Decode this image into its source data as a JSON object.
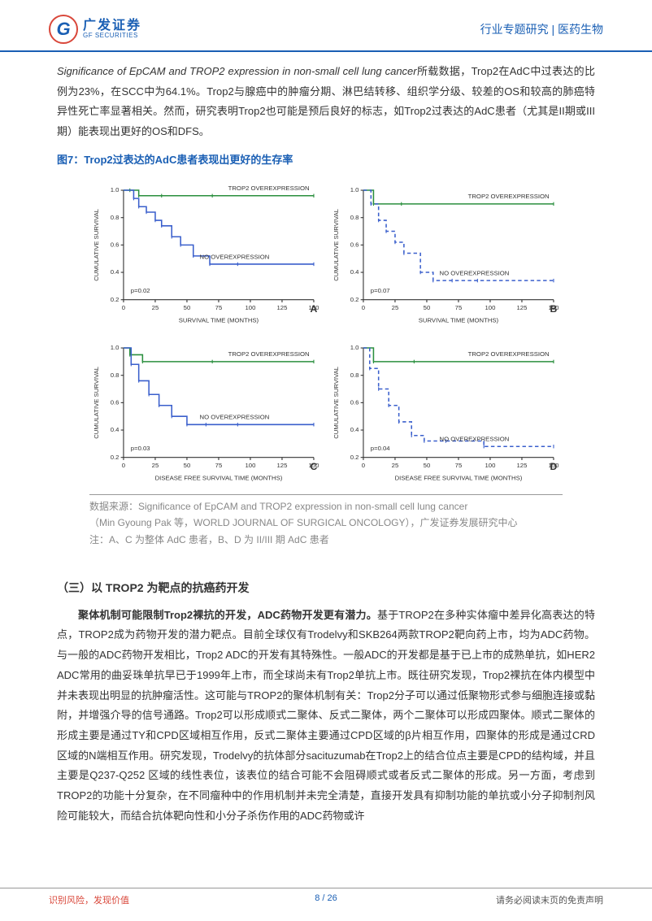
{
  "header": {
    "logo_cn": "广发证券",
    "logo_en": "GF SECURITIES",
    "breadcrumb": "行业专题研究 | 医药生物"
  },
  "para1": {
    "italic_part": "Significance of EpCAM and TROP2 expression in non-small cell lung cancer",
    "rest": "所载数据，Trop2在AdC中过表达的比例为23%，在SCC中为64.1%。Trop2与腺癌中的肿瘤分期、淋巴结转移、组织学分级、较差的OS和较高的肺癌特异性死亡率显著相关。然而，研究表明Trop2也可能是预后良好的标志，如Trop2过表达的AdC患者（尤其是II期或III期）能表现出更好的OS和DFS。"
  },
  "figure7": {
    "title": "图7：Trop2过表达的AdC患者表现出更好的生存率",
    "charts": {
      "type": "survival_curve",
      "line_color_over": "#2a8f3e",
      "line_color_no": "#3a5fcc",
      "axis_color": "#333333",
      "grid_color": "#cccccc",
      "label_fontsize": 7,
      "panel_label_fontsize": 11,
      "xlim": [
        0,
        150
      ],
      "ylim": [
        0.2,
        1.0
      ],
      "panels": [
        {
          "id": "A",
          "xlabel": "SURVIVAL TIME (MONTHS)",
          "ylabel": "CUMULATIVE SURVIVAL",
          "p_text": "p=0.02",
          "label_over": "TROP2 OVEREXPRESSION",
          "label_no": "NO OVEREXPRESSION",
          "xticks": [
            0,
            25,
            50,
            75,
            100,
            125,
            150
          ],
          "yticks": [
            0.2,
            0.4,
            0.6,
            0.8,
            1.0
          ],
          "over_points": [
            [
              0,
              1.0
            ],
            [
              5,
              1.0
            ],
            [
              12,
              0.96
            ],
            [
              30,
              0.96
            ],
            [
              70,
              0.96
            ],
            [
              150,
              0.96
            ]
          ],
          "no_points": [
            [
              0,
              1.0
            ],
            [
              8,
              0.94
            ],
            [
              12,
              0.88
            ],
            [
              18,
              0.84
            ],
            [
              25,
              0.78
            ],
            [
              30,
              0.74
            ],
            [
              38,
              0.66
            ],
            [
              45,
              0.6
            ],
            [
              55,
              0.52
            ],
            [
              68,
              0.46
            ],
            [
              90,
              0.46
            ],
            [
              150,
              0.46
            ]
          ]
        },
        {
          "id": "B",
          "xlabel": "SURVIVAL TIME (MONTHS)",
          "ylabel": "CUMULATIVE SURVIVAL",
          "p_text": "p=0.07",
          "label_over": "TROP2 OVEREXPRESSION",
          "label_no": "NO OVEREXPRESSION",
          "xticks": [
            0,
            25,
            50,
            75,
            100,
            125,
            150
          ],
          "yticks": [
            0.2,
            0.4,
            0.6,
            0.8,
            1.0
          ],
          "over_points": [
            [
              0,
              1.0
            ],
            [
              8,
              0.9
            ],
            [
              30,
              0.9
            ],
            [
              150,
              0.9
            ]
          ],
          "no_points": [
            [
              0,
              1.0
            ],
            [
              6,
              0.9
            ],
            [
              12,
              0.78
            ],
            [
              18,
              0.7
            ],
            [
              25,
              0.62
            ],
            [
              32,
              0.54
            ],
            [
              45,
              0.4
            ],
            [
              55,
              0.34
            ],
            [
              70,
              0.34
            ],
            [
              90,
              0.34
            ],
            [
              150,
              0.34
            ]
          ],
          "no_dash": true
        },
        {
          "id": "C",
          "xlabel": "DISEASE FREE SURVIVAL TIME (MONTHS)",
          "ylabel": "CUMULATIVE SURVIVAL",
          "p_text": "p=0.03",
          "label_over": "TROP2 OVEREXPRESSION",
          "label_no": "NO OVEREXPRESSION",
          "xticks": [
            0,
            25,
            50,
            75,
            100,
            125,
            150
          ],
          "yticks": [
            0.2,
            0.4,
            0.6,
            0.8,
            1.0
          ],
          "over_points": [
            [
              0,
              1.0
            ],
            [
              5,
              0.95
            ],
            [
              15,
              0.9
            ],
            [
              70,
              0.9
            ],
            [
              150,
              0.9
            ]
          ],
          "no_points": [
            [
              0,
              1.0
            ],
            [
              6,
              0.88
            ],
            [
              12,
              0.76
            ],
            [
              20,
              0.66
            ],
            [
              28,
              0.58
            ],
            [
              38,
              0.5
            ],
            [
              50,
              0.44
            ],
            [
              65,
              0.44
            ],
            [
              90,
              0.44
            ],
            [
              150,
              0.44
            ]
          ]
        },
        {
          "id": "D",
          "xlabel": "DISEASE FREE SURVIVAL TIME (MONTHS)",
          "ylabel": "CUMULATIVE SURVIVAL",
          "p_text": "p=0.04",
          "label_over": "TROP2 OVEREXPRESSION",
          "label_no": "NO OVEREXPRESSION",
          "xticks": [
            0,
            25,
            50,
            75,
            100,
            125,
            150
          ],
          "yticks": [
            0.2,
            0.4,
            0.6,
            0.8,
            1.0
          ],
          "over_points": [
            [
              0,
              1.0
            ],
            [
              8,
              0.9
            ],
            [
              40,
              0.9
            ],
            [
              150,
              0.9
            ]
          ],
          "no_points": [
            [
              0,
              1.0
            ],
            [
              5,
              0.85
            ],
            [
              12,
              0.7
            ],
            [
              20,
              0.58
            ],
            [
              28,
              0.46
            ],
            [
              38,
              0.36
            ],
            [
              48,
              0.32
            ],
            [
              65,
              0.32
            ],
            [
              95,
              0.28
            ],
            [
              150,
              0.28
            ]
          ],
          "no_dash": true
        }
      ]
    },
    "source_line1": "数据来源：Significance of EpCAM and TROP2 expression in non-small cell lung cancer",
    "source_line2": "（Min Gyoung Pak 等，WORLD JOURNAL OF SURGICAL ONCOLOGY），广发证券发展研究中心",
    "source_line3": "注：A、C 为整体 AdC 患者，B、D 为 II/III 期 AdC 患者"
  },
  "section3": {
    "title": "（三）以 TROP2 为靶点的抗癌药开发",
    "bold_lead": "聚体机制可能限制Trop2裸抗的开发，ADC药物开发更有潜力。",
    "body": "基于TROP2在多种实体瘤中差异化高表达的特点，TROP2成为药物开发的潜力靶点。目前全球仅有Trodelvy和SKB264两款TROP2靶向药上市，均为ADC药物。与一般的ADC药物开发相比，Trop2 ADC的开发有其特殊性。一般ADC的开发都是基于已上市的成熟单抗，如HER2 ADC常用的曲妥珠单抗早已于1999年上市，而全球尚未有Trop2单抗上市。既往研究发现，Trop2裸抗在体内模型中并未表现出明显的抗肿瘤活性。这可能与TROP2的聚体机制有关：Trop2分子可以通过低聚物形式参与细胞连接或黏附，并增强介导的信号通路。Trop2可以形成顺式二聚体、反式二聚体，两个二聚体可以形成四聚体。顺式二聚体的形成主要是通过TY和CPD区域相互作用，反式二聚体主要通过CPD区域的β片相互作用，四聚体的形成是通过CRD区域的N端相互作用。研究发现，Trodelvy的抗体部分sacituzumab在Trop2上的结合位点主要是CPD的结构域，并且主要是Q237-Q252 区域的线性表位，该表位的结合可能不会阻碍顺式或者反式二聚体的形成。另一方面，考虑到TROP2的功能十分复杂，在不同瘤种中的作用机制并未完全清楚，直接开发具有抑制功能的单抗或小分子抑制剂风险可能较大，而结合抗体靶向性和小分子杀伤作用的ADC药物或许"
  },
  "footer": {
    "left": "识别风险，发现价值",
    "center": "8 / 26",
    "right": "请务必阅读末页的免责声明"
  }
}
